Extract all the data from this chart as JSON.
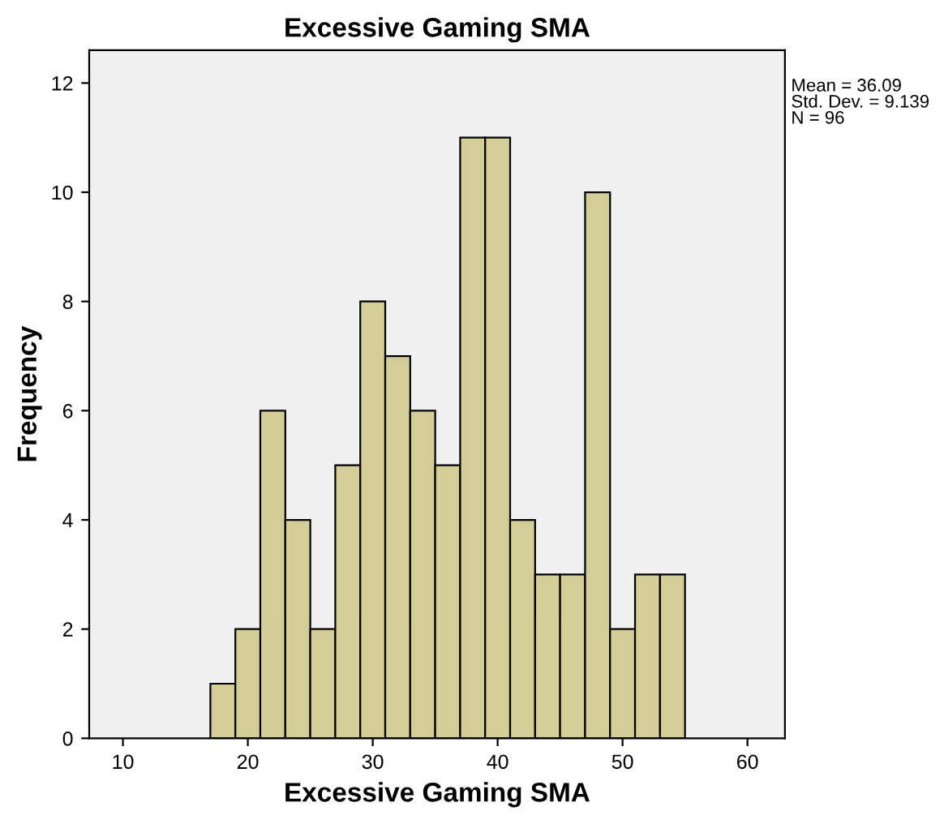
{
  "chart_data": {
    "type": "histogram",
    "title": "Excessive Gaming SMA",
    "xlabel": "Excessive Gaming SMA",
    "ylabel": "Frequency",
    "bins": [
      17,
      19,
      21,
      23,
      25,
      27,
      29,
      31,
      33,
      35,
      37,
      39,
      41,
      43,
      45,
      47,
      49,
      51,
      53,
      55
    ],
    "values": [
      1,
      2,
      6,
      4,
      2,
      5,
      8,
      7,
      6,
      5,
      11,
      11,
      4,
      3,
      3,
      10,
      2,
      3,
      3
    ],
    "color": "#d3ce97",
    "xlim": [
      7.3,
      63
    ],
    "xticks": [
      10,
      20,
      30,
      40,
      50,
      60
    ],
    "ylim": [
      0,
      12.6
    ],
    "yticks": [
      0,
      2,
      4,
      6,
      8,
      10,
      12
    ],
    "grid": false,
    "legend": false,
    "annotations": [
      "Mean = 36.09\nStd. Dev. = 9.139\nN = 96"
    ]
  }
}
